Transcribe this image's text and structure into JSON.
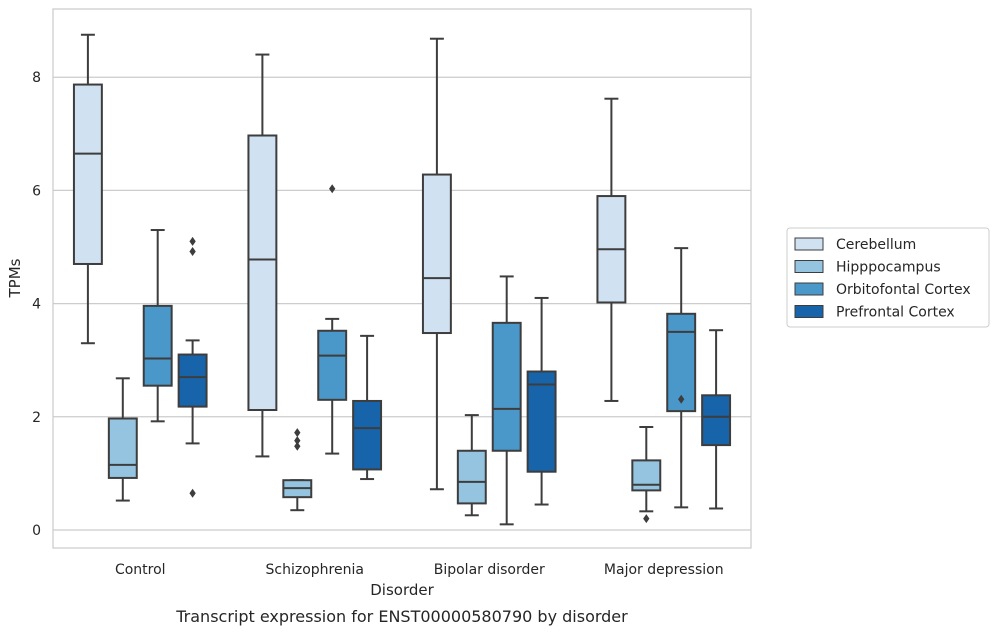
{
  "chart_data": {
    "type": "box",
    "title": "",
    "caption": "Transcript expression for ENST00000580790 by disorder",
    "xlabel": "Disorder",
    "ylabel": "TPMs",
    "ylim": [
      -0.3,
      9.3
    ],
    "yticks": [
      0,
      2,
      4,
      6,
      8
    ],
    "grid": true,
    "legend_position": "right",
    "categories": [
      "Control",
      "Schizophrenia",
      "Bipolar disorder",
      "Major depression"
    ],
    "series": [
      {
        "name": "Cerebellum",
        "color": "#d0e1f2",
        "boxes": [
          {
            "whislo": 3.3,
            "q1": 4.7,
            "med": 6.65,
            "q3": 7.87,
            "whishi": 8.75,
            "fliers": []
          },
          {
            "whislo": 1.3,
            "q1": 2.12,
            "med": 4.78,
            "q3": 6.97,
            "whishi": 8.4,
            "fliers": []
          },
          {
            "whislo": 0.72,
            "q1": 3.48,
            "med": 4.45,
            "q3": 6.28,
            "whishi": 8.68,
            "fliers": []
          },
          {
            "whislo": 2.28,
            "q1": 4.02,
            "med": 4.96,
            "q3": 5.9,
            "whishi": 7.62,
            "fliers": []
          }
        ]
      },
      {
        "name": "Hipppocampus",
        "color": "#94c4df",
        "boxes": [
          {
            "whislo": 0.52,
            "q1": 0.92,
            "med": 1.15,
            "q3": 1.97,
            "whishi": 2.68,
            "fliers": []
          },
          {
            "whislo": 0.35,
            "q1": 0.58,
            "med": 0.74,
            "q3": 0.88,
            "whishi": 0.88,
            "fliers": [
              1.48,
              1.58,
              1.72
            ]
          },
          {
            "whislo": 0.26,
            "q1": 0.47,
            "med": 0.85,
            "q3": 1.4,
            "whishi": 2.03,
            "fliers": []
          },
          {
            "whislo": 0.33,
            "q1": 0.7,
            "med": 0.8,
            "q3": 1.23,
            "whishi": 1.82,
            "fliers": [
              0.2
            ]
          }
        ]
      },
      {
        "name": "Orbitofontal Cortex",
        "color": "#4a98c9",
        "boxes": [
          {
            "whislo": 1.92,
            "q1": 2.55,
            "med": 3.03,
            "q3": 3.96,
            "whishi": 5.3,
            "fliers": []
          },
          {
            "whislo": 1.35,
            "q1": 2.3,
            "med": 3.08,
            "q3": 3.52,
            "whishi": 3.73,
            "fliers": [
              6.03
            ]
          },
          {
            "whislo": 0.1,
            "q1": 1.4,
            "med": 2.14,
            "q3": 3.66,
            "whishi": 4.48,
            "fliers": []
          },
          {
            "whislo": 0.4,
            "q1": 2.1,
            "med": 3.5,
            "q3": 3.82,
            "whishi": 4.98,
            "fliers": [
              2.31
            ]
          }
        ]
      },
      {
        "name": "Prefrontal Cortex",
        "color": "#1764ab",
        "boxes": [
          {
            "whislo": 1.53,
            "q1": 2.18,
            "med": 2.7,
            "q3": 3.1,
            "whishi": 3.35,
            "fliers": [
              0.65,
              4.92,
              5.1
            ]
          },
          {
            "whislo": 0.9,
            "q1": 1.07,
            "med": 1.8,
            "q3": 2.28,
            "whishi": 3.43,
            "fliers": []
          },
          {
            "whislo": 0.45,
            "q1": 1.03,
            "med": 2.57,
            "q3": 2.8,
            "whishi": 4.1,
            "fliers": []
          },
          {
            "whislo": 0.38,
            "q1": 1.5,
            "med": 2.0,
            "q3": 2.38,
            "whishi": 3.53,
            "fliers": []
          }
        ]
      }
    ]
  }
}
